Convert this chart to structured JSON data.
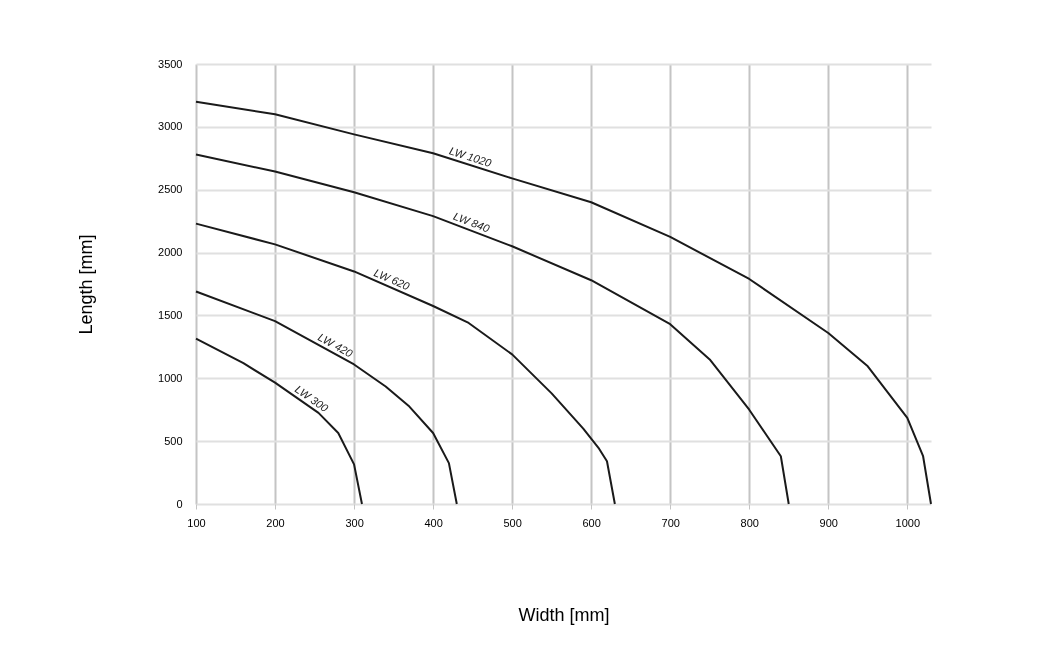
{
  "chart_data": {
    "type": "line",
    "xlabel": "Width [mm]",
    "ylabel": "Length [mm]",
    "xlim": [
      100,
      1030
    ],
    "xticks": [
      100,
      200,
      300,
      400,
      500,
      600,
      700,
      800,
      900,
      1000
    ],
    "ylim": [
      0,
      3500
    ],
    "yticks": [
      0,
      500,
      1000,
      1500,
      2000,
      2500,
      3000,
      3500
    ],
    "grid": true,
    "marker": "none",
    "line_style": "solid",
    "series": [
      {
        "name": "LW 1020",
        "color": "#1a1a1a",
        "x": [
          100,
          200,
          300,
          400,
          500,
          600,
          700,
          800,
          900,
          950,
          1000,
          1020,
          1030
        ],
        "values": [
          3200,
          3100,
          2940,
          2790,
          2590,
          2400,
          2125,
          1790,
          1360,
          1095,
          685,
          380,
          0
        ]
      },
      {
        "name": "LW 840",
        "color": "#1a1a1a",
        "x": [
          100,
          200,
          300,
          400,
          500,
          600,
          700,
          750,
          800,
          840,
          850
        ],
        "values": [
          2780,
          2645,
          2480,
          2290,
          2050,
          1780,
          1430,
          1150,
          750,
          380,
          0
        ]
      },
      {
        "name": "LW 620",
        "color": "#1a1a1a",
        "x": [
          100,
          200,
          300,
          400,
          445,
          500,
          550,
          590,
          610,
          620,
          630
        ],
        "values": [
          2230,
          2065,
          1850,
          1575,
          1440,
          1190,
          880,
          600,
          440,
          340,
          0
        ]
      },
      {
        "name": "LW 420",
        "color": "#1a1a1a",
        "x": [
          100,
          200,
          300,
          340,
          370,
          400,
          420,
          430
        ],
        "values": [
          1690,
          1455,
          1110,
          935,
          775,
          565,
          325,
          0
        ]
      },
      {
        "name": "LW 300",
        "color": "#1a1a1a",
        "x": [
          100,
          160,
          200,
          255,
          280,
          300,
          310
        ],
        "values": [
          1315,
          1120,
          965,
          725,
          565,
          315,
          0
        ]
      }
    ]
  }
}
